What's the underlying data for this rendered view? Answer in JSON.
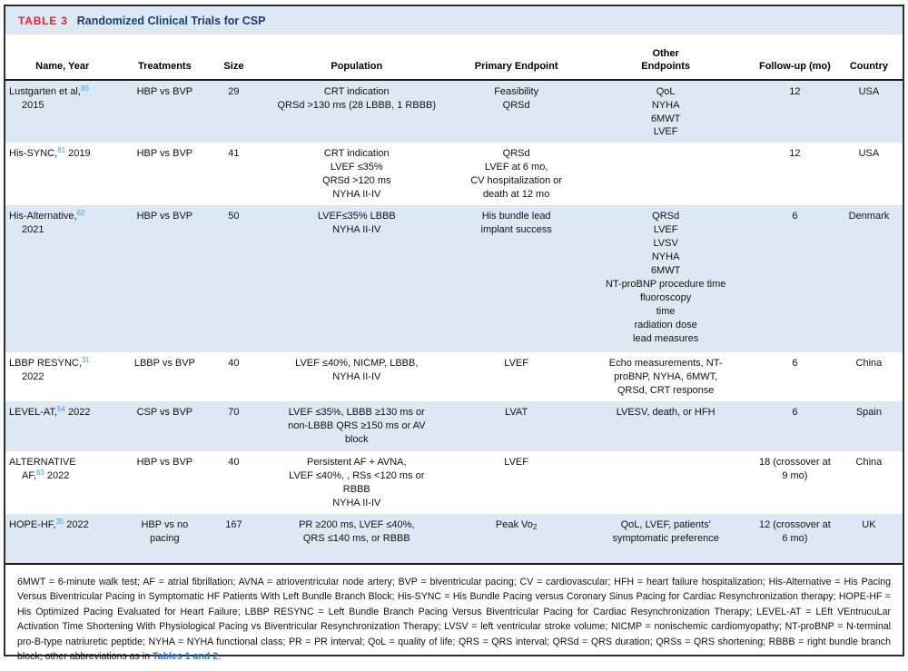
{
  "colors": {
    "stripe_blue": "#dce9f5",
    "tag_red": "#e2242b",
    "title_navy": "#1d3e6d",
    "citation_blue": "#3fa0d8",
    "link_blue": "#2b78c0",
    "rule_black": "#1a1a1a"
  },
  "table": {
    "tag": "TABLE 3",
    "title": "Randomized Clinical Trials for CSP",
    "columns": [
      "Name, Year",
      "Treatments",
      "Size",
      "Population",
      "Primary Endpoint",
      "Other\nEndpoints",
      "Follow-up (mo)",
      "Country"
    ],
    "rows": [
      {
        "name_pre": "Lustgarten et al,",
        "name_ref": "80",
        "name_post": "\n2015",
        "treatments": "HBP vs BVP",
        "size": "29",
        "population": "CRT indication\nQRSd >130 ms (28 LBBB, 1 RBBB)",
        "primary": "Feasibility\nQRSd",
        "other": "QoL\nNYHA\n6MWT\nLVEF",
        "followup": "12",
        "country": "USA"
      },
      {
        "name_pre": "His-SYNC,",
        "name_ref": "81",
        "name_post": " 2019",
        "treatments": "HBP vs BVP",
        "size": "41",
        "population": "CRT indication\nLVEF ≤35%\nQRSd >120 ms\nNYHA II-IV",
        "primary": "QRSd\nLVEF at 6 mo,\nCV hospitalization or\ndeath at 12 mo",
        "other": "",
        "followup": "12",
        "country": "USA"
      },
      {
        "name_pre": "His-Alternative,",
        "name_ref": "82",
        "name_post": "\n2021",
        "treatments": "HBP vs BVP",
        "size": "50",
        "population": "LVEF≤35% LBBB\nNYHA II-IV",
        "primary": "His bundle lead\nimplant success",
        "other": "QRSd\nLVEF\nLVSV\nNYHA\n6MWT\nNT-proBNP procedure time\nfluoroscopy\ntime\nradiation dose\nlead measures",
        "followup": "6",
        "country": "Denmark"
      },
      {
        "name_pre": "LBBP RESYNC,",
        "name_ref": "31",
        "name_post": "\n2022",
        "treatments": "LBBP vs BVP",
        "size": "40",
        "population": "LVEF ≤40%, NICMP, LBBB,\nNYHA II-IV",
        "primary": "LVEF",
        "other": "Echo measurements, NT-\nproBNP, NYHA, 6MWT,\nQRSd, CRT response",
        "followup": "6",
        "country": "China"
      },
      {
        "name_pre": "LEVEL-AT,",
        "name_ref": "54",
        "name_post": " 2022",
        "treatments": "CSP vs BVP",
        "size": "70",
        "population": "LVEF ≤35%, LBBB ≥130 ms or\nnon-LBBB QRS ≥150 ms or AV\nblock",
        "primary": "LVAT",
        "other": "LVESV, death, or HFH",
        "followup": "6",
        "country": "Spain"
      },
      {
        "name_pre": "ALTERNATIVE\nAF,",
        "name_ref": "83",
        "name_post": " 2022",
        "treatments": "HBP vs BVP",
        "size": "40",
        "population": "Persistent AF + AVNA,\nLVEF ≤40%, , RSs <120 ms or\nRBBB\nNYHA II-IV",
        "primary": "LVEF",
        "other": "",
        "followup": "18 (crossover at\n9 mo)",
        "country": "China"
      },
      {
        "name_pre": "HOPE-HF,",
        "name_ref": "35",
        "name_post": " 2022",
        "treatments": "HBP vs no\npacing",
        "size": "167",
        "population": "PR ≥200 ms, LVEF ≤40%,\nQRS ≤140 ms, or RBBB",
        "primary": "Peak Vo",
        "primary_sub": "2",
        "other": "QoL, LVEF, patients'\nsymptomatic preference",
        "followup": "12 (crossover at\n6 mo)",
        "country": "UK"
      }
    ],
    "footnote": {
      "text": "6MWT = 6-minute walk test; AF = atrial fibrillation; AVNA = atrioventricular node artery; BVP = biventricular pacing; CV = cardiovascular; HFH = heart failure hospitalization; His-Alternative = His Pacing Versus Biventricular Pacing in Symptomatic HF Patients With Left Bundle Branch Block; His-SYNC = His Bundle Pacing versus Coronary Sinus Pacing for Cardiac Resynchronization therapy; HOPE-HF = His Optimized Pacing Evaluated for Heart Failure; LBBP RESYNC = Left Bundle Branch Pacing Versus Biventricular Pacing for Cardiac Resynchronization Therapy; LEVEL-AT = LEft VEntrucuLar Activation Time Shortening With Physiological Pacing vs Biventricular Resynchronization Therapy; LVSV = left ventricular stroke volume; NICMP = nonischemic cardiomyopathy; NT-proBNP = N-terminal pro-B-type natriuretic peptide; NYHA = NYHA functional class; PR = PR interval; QoL = quality of life; QRS = QRS interval; QRSd = QRS duration; QRSs = QRS shortening; RBBB = right bundle branch block; other abbreviations as in ",
      "link": "Tables 1 and 2",
      "suffix": "."
    }
  }
}
